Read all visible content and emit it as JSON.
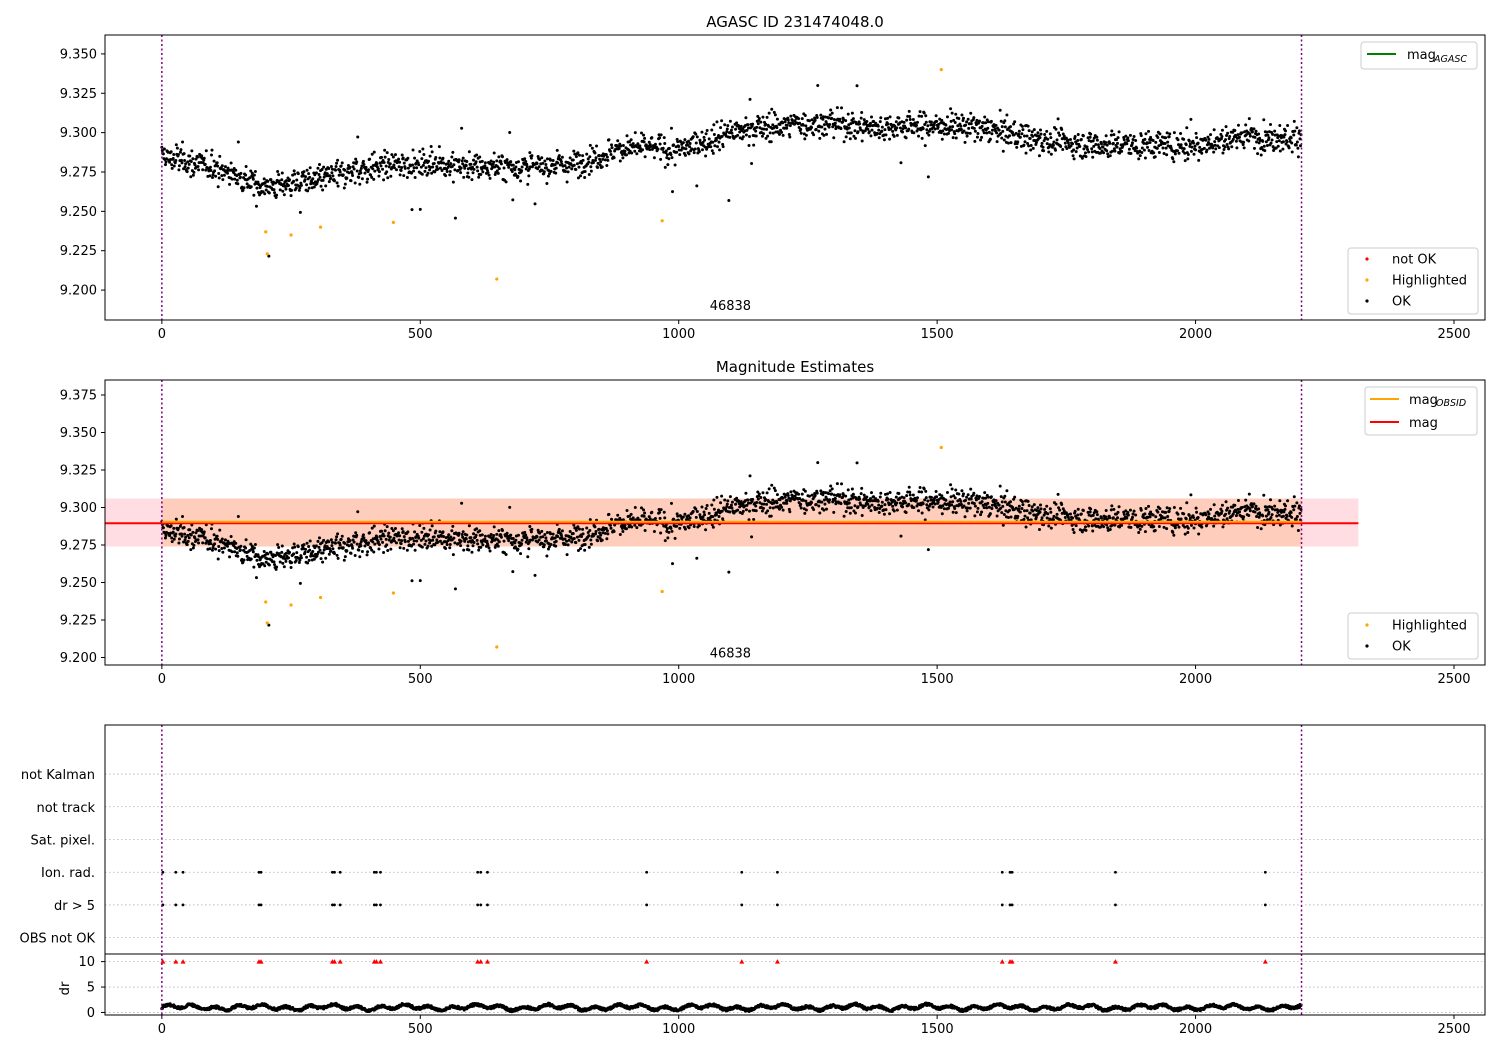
{
  "chart_data": [
    {
      "type": "scatter",
      "title": "AGASC ID 231474048.0",
      "xlabel": "",
      "ylabel": "",
      "xlim": [
        -110,
        2560
      ],
      "ylim": [
        9.181,
        9.362
      ],
      "xticks": [
        0,
        500,
        1000,
        1500,
        2000,
        2500
      ],
      "yticks": [
        9.2,
        9.225,
        9.25,
        9.275,
        9.3,
        9.325,
        9.35
      ],
      "ytick_labels": [
        "9.200",
        "9.225",
        "9.250",
        "9.275",
        "9.300",
        "9.325",
        "9.350"
      ],
      "annotations": [
        {
          "text": "46838",
          "x": 1100,
          "y": 9.1905
        }
      ],
      "vlines": [
        0,
        2205
      ],
      "legend_lines": [
        {
          "label": "mag",
          "sub": "AGASC",
          "color": "#008000"
        }
      ],
      "legend_markers": [
        {
          "label": "not OK",
          "color": "#ff0000"
        },
        {
          "label": "Highlighted",
          "color": "#ffa500"
        },
        {
          "label": "OK",
          "color": "#000000"
        }
      ],
      "highlighted": {
        "x": [
          201,
          204,
          250,
          307,
          448,
          648,
          968,
          1508
        ],
        "y": [
          9.237,
          9.223,
          9.235,
          9.24,
          9.243,
          9.207,
          9.244,
          9.34
        ]
      },
      "ok_trend": {
        "x": [
          0,
          100,
          200,
          300,
          400,
          500,
          600,
          700,
          800,
          900,
          1000,
          1100,
          1200,
          1300,
          1400,
          1500,
          1600,
          1700,
          1800,
          1900,
          2000,
          2100,
          2205
        ],
        "y": [
          9.285,
          9.278,
          9.266,
          9.27,
          9.278,
          9.28,
          9.279,
          9.278,
          9.28,
          9.291,
          9.289,
          9.3,
          9.305,
          9.306,
          9.303,
          9.305,
          9.302,
          9.295,
          9.292,
          9.292,
          9.292,
          9.298,
          9.296
        ]
      },
      "ok_count": 2205,
      "ok_scatter": 0.011
    },
    {
      "type": "scatter",
      "title": "Magnitude Estimates",
      "xlabel": "",
      "ylabel": "",
      "xlim": [
        -110,
        2560
      ],
      "ylim": [
        9.195,
        9.385
      ],
      "xticks": [
        0,
        500,
        1000,
        1500,
        2000,
        2500
      ],
      "yticks": [
        9.2,
        9.225,
        9.25,
        9.275,
        9.3,
        9.325,
        9.35,
        9.375
      ],
      "ytick_labels": [
        "9.200",
        "9.225",
        "9.250",
        "9.275",
        "9.300",
        "9.325",
        "9.350",
        "9.375"
      ],
      "annotations": [
        {
          "text": "46838",
          "x": 1100,
          "y": 9.2035
        }
      ],
      "vlines": [
        0,
        2205
      ],
      "mag_line": {
        "y": 9.2895,
        "x": [
          -110,
          2560
        ],
        "band": [
          9.274,
          9.306
        ],
        "color": "#ff0000"
      },
      "mag_obsid": {
        "y": 9.2905,
        "x": [
          0,
          2205
        ],
        "band": [
          9.274,
          9.306
        ],
        "color": "#ffa500"
      },
      "legend_lines": [
        {
          "label": "mag",
          "sub": "OBSID",
          "color": "#ffa500"
        },
        {
          "label": "mag",
          "sub": "",
          "color": "#ff0000"
        }
      ],
      "legend_markers": [
        {
          "label": "Highlighted",
          "color": "#ffa500"
        },
        {
          "label": "OK",
          "color": "#000000"
        }
      ]
    },
    {
      "type": "scatter",
      "title": "",
      "xlabel": "",
      "ylabel": "",
      "xlim": [
        -110,
        2560
      ],
      "ylim": [
        -0.5,
        6.5
      ],
      "xticks": [
        0,
        500,
        1000,
        1500,
        2000,
        2500
      ],
      "categories": [
        "OBS not OK",
        "dr > 5",
        "Ion. rad.",
        "Sat. pixel.",
        "not track",
        "not Kalman"
      ],
      "grid": "horizontal dotted",
      "vlines": [
        0,
        2205
      ],
      "flag_x": [
        2,
        27,
        41,
        188,
        192,
        330,
        334,
        345,
        411,
        415,
        423,
        611,
        617,
        630,
        938,
        1122,
        1191,
        1626,
        1641,
        1645,
        1845,
        2135
      ],
      "flags": {
        "dr > 5": "flag_x",
        "Ion. rad.": "flag_x"
      }
    },
    {
      "type": "line",
      "title": "",
      "xlabel": "",
      "ylabel": "dr",
      "xlim": [
        -110,
        2560
      ],
      "ylim": [
        -0.5,
        11.5
      ],
      "xticks": [
        0,
        500,
        1000,
        1500,
        2000,
        2500
      ],
      "yticks": [
        0,
        5,
        10
      ],
      "grid": "horizontal dotted",
      "vlines": [
        0,
        2205
      ],
      "dr_base": 1.0,
      "dr_amplitude": 0.45,
      "dr_clip_value": 10,
      "dr_clip_x": "flag_x"
    }
  ]
}
